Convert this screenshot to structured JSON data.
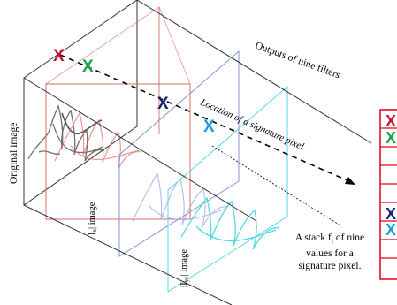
{
  "labels": {
    "original": "Original image",
    "outputs": "Outputs of nine filters",
    "location": "Location of a signature pixel",
    "ix_main": "I",
    "ix_sub": "x",
    "ix_tail": "| image",
    "iyy_pre": "|I",
    "iyy_sub": "yy",
    "iyy_tail": "| image",
    "stack_line1": "A stack f",
    "stack_sub": "i",
    "stack_line1_tail": " of nine",
    "stack_line2": "values for a",
    "stack_line3": "signature pixel."
  },
  "markers": {
    "symbol": "X"
  },
  "colors": {
    "red": "#c8102e",
    "green": "#1e9e4a",
    "navy": "#14246e",
    "cyan": "#1aa0d8",
    "plane_red": "#e06a6a",
    "plane_blue": "#7f95d8",
    "plane_cyan": "#5ad6e8"
  }
}
